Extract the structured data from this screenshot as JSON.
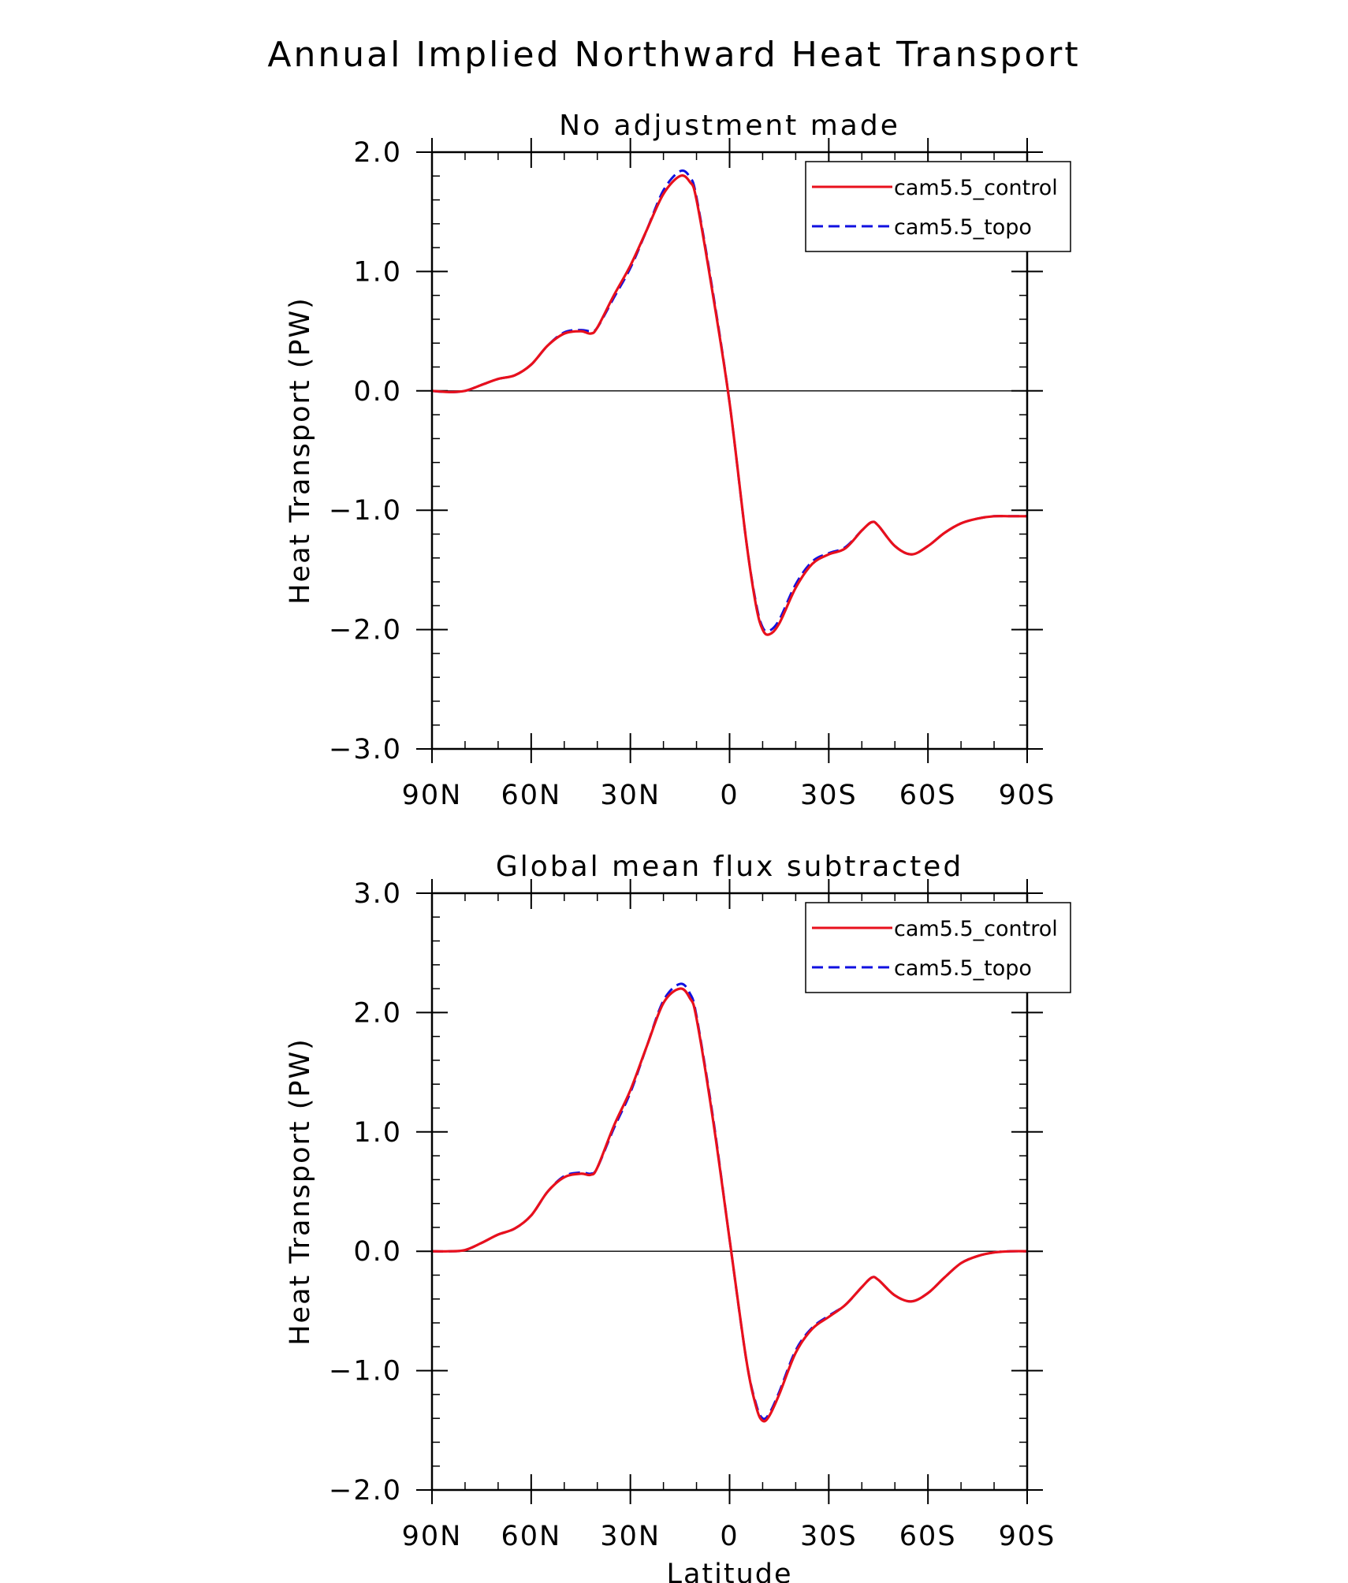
{
  "figure": {
    "title": "Annual Implied Northward Heat Transport",
    "xlabel": "Latitude"
  },
  "colors": {
    "control": "#e8101c",
    "topo": "#1010e0",
    "axis": "#000000"
  },
  "chart_data": [
    {
      "type": "line",
      "title": "No adjustment made",
      "xlabel": "",
      "ylabel": "Heat Transport (PW)",
      "xlim": [
        90,
        -90
      ],
      "ylim": [
        -3,
        2
      ],
      "xticks": [
        {
          "value": 90,
          "label": "90N"
        },
        {
          "value": 60,
          "label": "60N"
        },
        {
          "value": 30,
          "label": "30N"
        },
        {
          "value": 0,
          "label": "0"
        },
        {
          "value": -30,
          "label": "30S"
        },
        {
          "value": -60,
          "label": "60S"
        },
        {
          "value": -90,
          "label": "90S"
        }
      ],
      "yticks": [
        {
          "value": 2,
          "label": "2.0"
        },
        {
          "value": 1,
          "label": "1.0"
        },
        {
          "value": 0,
          "label": "0.0"
        },
        {
          "value": -1,
          "label": "−1.0"
        },
        {
          "value": -2,
          "label": "−2.0"
        },
        {
          "value": -3,
          "label": "−3.0"
        }
      ],
      "legend": {
        "location": "top-right"
      },
      "series": [
        {
          "name": "cam5.5_control",
          "style": "solid",
          "x": [
            90,
            85,
            80,
            75,
            70,
            65,
            60,
            55,
            50,
            45,
            42,
            40,
            35,
            30,
            25,
            20,
            15,
            12,
            10,
            5,
            0,
            -5,
            -8,
            -10,
            -12,
            -15,
            -20,
            -25,
            -30,
            -35,
            -40,
            -43,
            -45,
            -50,
            -55,
            -60,
            -65,
            -70,
            -75,
            -80,
            -85,
            -90
          ],
          "y": [
            0.0,
            -0.01,
            0.0,
            0.05,
            0.1,
            0.13,
            0.22,
            0.38,
            0.48,
            0.5,
            0.48,
            0.53,
            0.8,
            1.05,
            1.35,
            1.65,
            1.8,
            1.75,
            1.6,
            0.8,
            -0.1,
            -1.25,
            -1.8,
            -2.0,
            -2.04,
            -1.95,
            -1.65,
            -1.45,
            -1.37,
            -1.32,
            -1.17,
            -1.1,
            -1.13,
            -1.3,
            -1.37,
            -1.3,
            -1.19,
            -1.11,
            -1.07,
            -1.05,
            -1.05,
            -1.05
          ]
        },
        {
          "name": "cam5.5_topo",
          "style": "dashed",
          "x": [
            90,
            85,
            80,
            75,
            70,
            65,
            60,
            55,
            50,
            45,
            42,
            40,
            35,
            30,
            25,
            20,
            15,
            12,
            10,
            5,
            0,
            -5,
            -8,
            -10,
            -12,
            -15,
            -20,
            -25,
            -30,
            -35,
            -40,
            -43,
            -45,
            -50,
            -55,
            -60,
            -65,
            -70,
            -75,
            -80,
            -85,
            -90
          ],
          "y": [
            0.0,
            -0.01,
            0.0,
            0.05,
            0.1,
            0.13,
            0.22,
            0.38,
            0.49,
            0.51,
            0.5,
            0.53,
            0.78,
            1.03,
            1.35,
            1.68,
            1.84,
            1.79,
            1.62,
            0.82,
            -0.1,
            -1.25,
            -1.78,
            -1.98,
            -2.01,
            -1.92,
            -1.62,
            -1.43,
            -1.36,
            -1.31,
            -1.17,
            -1.1,
            -1.13,
            -1.3,
            -1.37,
            -1.3,
            -1.19,
            -1.11,
            -1.07,
            -1.05,
            -1.05,
            -1.05
          ]
        }
      ]
    },
    {
      "type": "line",
      "title": "Global mean flux subtracted",
      "xlabel": "Latitude",
      "ylabel": "Heat Transport (PW)",
      "xlim": [
        90,
        -90
      ],
      "ylim": [
        -2,
        3
      ],
      "xticks": [
        {
          "value": 90,
          "label": "90N"
        },
        {
          "value": 60,
          "label": "60N"
        },
        {
          "value": 30,
          "label": "30N"
        },
        {
          "value": 0,
          "label": "0"
        },
        {
          "value": -30,
          "label": "30S"
        },
        {
          "value": -60,
          "label": "60S"
        },
        {
          "value": -90,
          "label": "90S"
        }
      ],
      "yticks": [
        {
          "value": 3,
          "label": "3.0"
        },
        {
          "value": 2,
          "label": "2.0"
        },
        {
          "value": 1,
          "label": "1.0"
        },
        {
          "value": 0,
          "label": "0.0"
        },
        {
          "value": -1,
          "label": "−1.0"
        },
        {
          "value": -2,
          "label": "−2.0"
        }
      ],
      "legend": {
        "location": "top-right"
      },
      "series": [
        {
          "name": "cam5.5_control",
          "style": "solid",
          "x": [
            90,
            85,
            80,
            75,
            70,
            65,
            60,
            55,
            50,
            45,
            42,
            40,
            35,
            30,
            25,
            20,
            15,
            12,
            10,
            5,
            0,
            -5,
            -8,
            -10,
            -12,
            -15,
            -20,
            -25,
            -30,
            -35,
            -40,
            -43,
            -45,
            -50,
            -55,
            -60,
            -65,
            -70,
            -75,
            -80,
            -85,
            -90
          ],
          "y": [
            0.0,
            0.0,
            0.01,
            0.07,
            0.14,
            0.19,
            0.3,
            0.5,
            0.62,
            0.65,
            0.64,
            0.7,
            1.05,
            1.35,
            1.72,
            2.08,
            2.2,
            2.12,
            1.95,
            1.1,
            0.1,
            -0.9,
            -1.3,
            -1.42,
            -1.38,
            -1.2,
            -0.85,
            -0.65,
            -0.55,
            -0.45,
            -0.3,
            -0.22,
            -0.24,
            -0.37,
            -0.42,
            -0.35,
            -0.22,
            -0.1,
            -0.04,
            -0.01,
            0.0,
            0.0
          ]
        },
        {
          "name": "cam5.5_topo",
          "style": "dashed",
          "x": [
            90,
            85,
            80,
            75,
            70,
            65,
            60,
            55,
            50,
            45,
            42,
            40,
            35,
            30,
            25,
            20,
            15,
            12,
            10,
            5,
            0,
            -5,
            -8,
            -10,
            -12,
            -15,
            -20,
            -25,
            -30,
            -35,
            -40,
            -43,
            -45,
            -50,
            -55,
            -60,
            -65,
            -70,
            -75,
            -80,
            -85,
            -90
          ],
          "y": [
            0.0,
            0.0,
            0.01,
            0.07,
            0.14,
            0.19,
            0.3,
            0.5,
            0.63,
            0.66,
            0.65,
            0.7,
            1.03,
            1.33,
            1.72,
            2.1,
            2.24,
            2.16,
            1.97,
            1.12,
            0.1,
            -0.9,
            -1.28,
            -1.4,
            -1.36,
            -1.18,
            -0.83,
            -0.64,
            -0.54,
            -0.45,
            -0.3,
            -0.22,
            -0.24,
            -0.37,
            -0.42,
            -0.35,
            -0.22,
            -0.1,
            -0.04,
            -0.01,
            0.0,
            0.0
          ]
        }
      ]
    }
  ]
}
